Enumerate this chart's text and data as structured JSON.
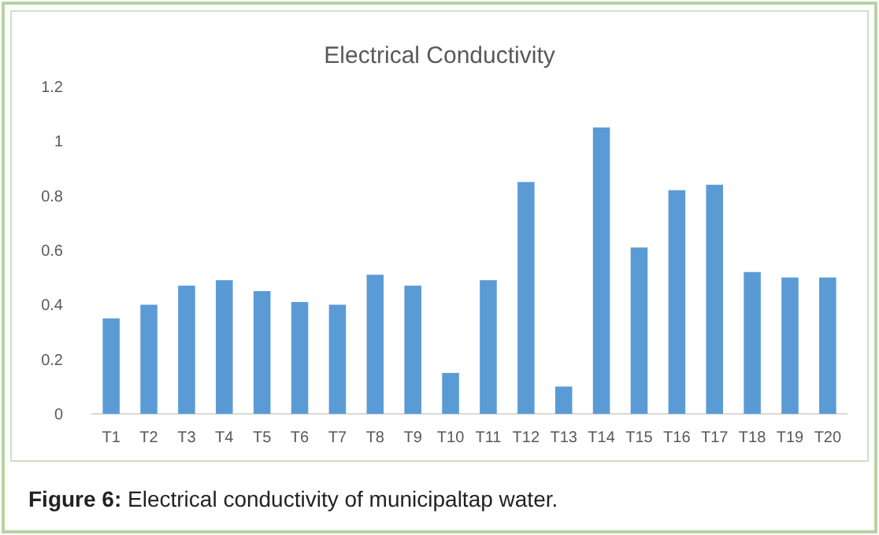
{
  "chart_data": {
    "type": "bar",
    "title": "Electrical Conductivity",
    "categories": [
      "T1",
      "T2",
      "T3",
      "T4",
      "T5",
      "T6",
      "T7",
      "T8",
      "T9",
      "T10",
      "T11",
      "T12",
      "T13",
      "T14",
      "T15",
      "T16",
      "T17",
      "T18",
      "T19",
      "T20"
    ],
    "values": [
      0.35,
      0.4,
      0.47,
      0.49,
      0.45,
      0.41,
      0.4,
      0.51,
      0.47,
      0.15,
      0.49,
      0.85,
      0.1,
      1.05,
      0.61,
      0.82,
      0.84,
      0.52,
      0.5,
      0.5
    ],
    "color": "#5b9bd5",
    "ylim": [
      0,
      1.2
    ],
    "yticks": [
      0,
      0.2,
      0.4,
      0.6,
      0.8,
      1,
      1.2
    ],
    "annotations": [
      "Figure 6: Electrical conductivity of municipaltap water."
    ]
  }
}
